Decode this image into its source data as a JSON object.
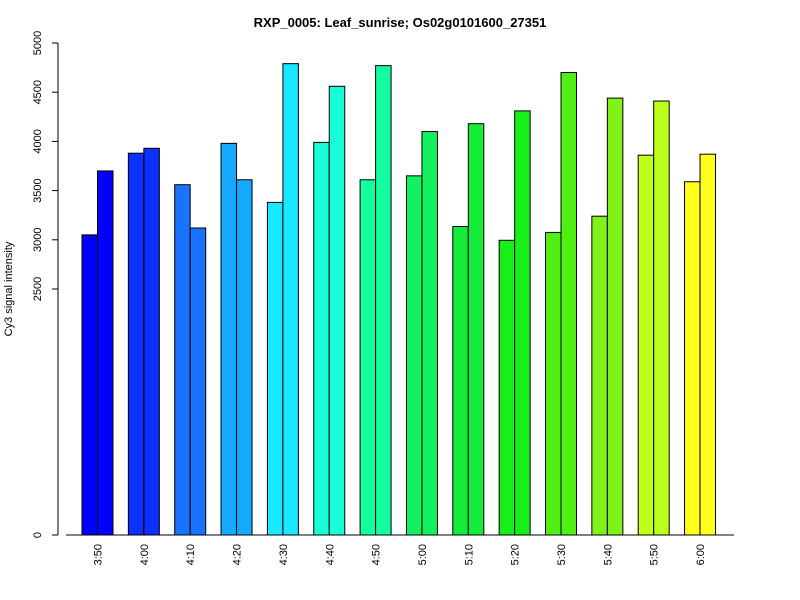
{
  "chart_data": {
    "type": "bar",
    "title": "RXP_0005: Leaf_sunrise; Os02g0101600_27351",
    "xlabel": "",
    "ylabel": "Cy3 signal intensity",
    "ylim": [
      0,
      5000
    ],
    "yticks": [
      0,
      2500,
      3000,
      3500,
      4000,
      4500,
      5000
    ],
    "grid": false,
    "categories": [
      "3:50",
      "4:00",
      "4:10",
      "4:20",
      "4:30",
      "4:40",
      "4:50",
      "5:00",
      "5:10",
      "5:20",
      "5:30",
      "5:40",
      "5:50",
      "6:00"
    ],
    "series": [
      {
        "values": [
          3050,
          3880,
          3560,
          3980,
          3380,
          3990,
          3610,
          3650,
          3135,
          2995,
          3075,
          3240,
          3860,
          3590
        ]
      },
      {
        "values": [
          3700,
          3930,
          3120,
          3610,
          4790,
          4560,
          4770,
          4100,
          4180,
          4310,
          4700,
          4440,
          4410,
          3870
        ]
      }
    ],
    "colors": [
      "#0000FF",
      "#0D30FF",
      "#1A72FF",
      "#15AAFF",
      "#1AE8FF",
      "#16FFD9",
      "#14FF9E",
      "#13F060",
      "#14EC3A",
      "#17F018",
      "#50F014",
      "#80F21A",
      "#BCFF1A",
      "#FFFF1A"
    ]
  }
}
